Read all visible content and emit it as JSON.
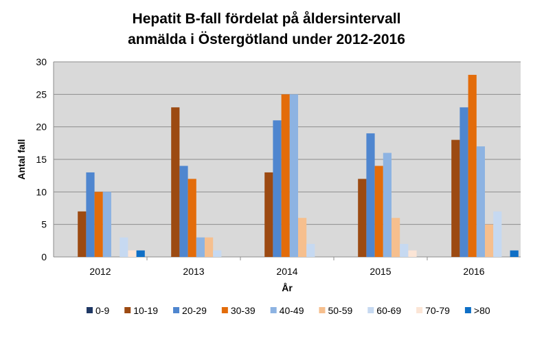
{
  "chart_data": {
    "type": "bar",
    "title_lines": [
      "Hepatit B-fall  fördelat på åldersintervall",
      "anmälda i Östergötland under 2012-2016"
    ],
    "xlabel": "År",
    "ylabel": "Antal fall",
    "ylim": [
      0,
      30
    ],
    "yticks": [
      0,
      5,
      10,
      15,
      20,
      25,
      30
    ],
    "grid": true,
    "legend_position": "bottom",
    "categories": [
      "2012",
      "2013",
      "2014",
      "2015",
      "2016"
    ],
    "series": [
      {
        "name": "0-9",
        "color": "#1f3864",
        "values": [
          0,
          0,
          0,
          0,
          0
        ]
      },
      {
        "name": "10-19",
        "color": "#9c4a12",
        "values": [
          7,
          23,
          13,
          12,
          18
        ]
      },
      {
        "name": "20-29",
        "color": "#4f86cf",
        "values": [
          13,
          14,
          21,
          19,
          23
        ]
      },
      {
        "name": "30-39",
        "color": "#e36c0a",
        "values": [
          10,
          12,
          25,
          14,
          28
        ]
      },
      {
        "name": "40-49",
        "color": "#8db3e2",
        "values": [
          10,
          3,
          25,
          16,
          17
        ]
      },
      {
        "name": "50-59",
        "color": "#f6bf8e",
        "values": [
          0,
          3,
          6,
          6,
          5
        ]
      },
      {
        "name": "60-69",
        "color": "#c6d9f1",
        "values": [
          3,
          1,
          2,
          2,
          7
        ]
      },
      {
        "name": "70-79",
        "color": "#fbe5d6",
        "values": [
          1,
          0,
          0,
          1,
          0
        ]
      },
      {
        "name": ">80",
        "color": "#0f6fc6",
        "values": [
          1,
          0,
          0,
          0,
          1
        ]
      }
    ]
  }
}
